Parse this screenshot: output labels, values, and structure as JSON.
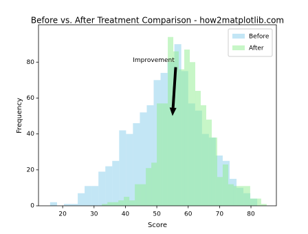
{
  "chart_data": {
    "type": "histogram",
    "title": "Before vs. After Treatment Comparison - how2matplotlib.com",
    "x_label": "Score",
    "y_label": "Frequency",
    "xlim": [
      12.3,
      88.1
    ],
    "ylim": [
      0,
      100.8
    ],
    "xticks": [
      20,
      30,
      40,
      50,
      60,
      70,
      80
    ],
    "yticks": [
      0,
      20,
      40,
      60,
      80
    ],
    "grid": false,
    "legend": "upper right",
    "alpha": 0.5,
    "series": [
      {
        "name": "Before",
        "color": "#87ceeb",
        "bins": [
          16,
          18.2,
          20.4,
          22.6,
          24.8,
          27,
          29.2,
          31.4,
          33.6,
          35.8,
          38,
          40.2,
          42.4,
          44.6,
          46.8,
          49,
          51.2,
          53.4,
          55.6,
          57.8,
          60,
          62.2,
          64.4,
          66.6,
          68.8,
          71,
          73.2,
          75.4,
          77.6,
          79.8,
          82
        ],
        "values": [
          2,
          0,
          1,
          1,
          7,
          11,
          11,
          19,
          22,
          25,
          42,
          40,
          46,
          52,
          56,
          70,
          74,
          80,
          90,
          75,
          57,
          53,
          40,
          38,
          28,
          25,
          15,
          10,
          7,
          4
        ]
      },
      {
        "name": "After",
        "color": "#90ee90",
        "bins": [
          32.5,
          34.25,
          36,
          37.75,
          39.5,
          41.25,
          43,
          44.75,
          46.5,
          48.25,
          50,
          51.75,
          53.5,
          55.25,
          57,
          58.75,
          60.5,
          62.25,
          64,
          65.75,
          67.5,
          69.25,
          71,
          72.75,
          74.5,
          76.25,
          78,
          79.75,
          81.5,
          83.25,
          85
        ],
        "values": [
          1,
          2,
          2,
          3,
          5,
          3,
          12,
          12,
          21,
          24,
          57,
          57,
          94,
          86,
          76,
          87,
          80,
          64,
          56,
          48,
          38,
          16,
          23,
          12,
          11,
          11,
          11,
          4,
          4,
          1
        ]
      }
    ],
    "annotation": {
      "text": "Improvement",
      "xy": [
        55,
        50
      ],
      "xytext": [
        49,
        81
      ]
    }
  }
}
